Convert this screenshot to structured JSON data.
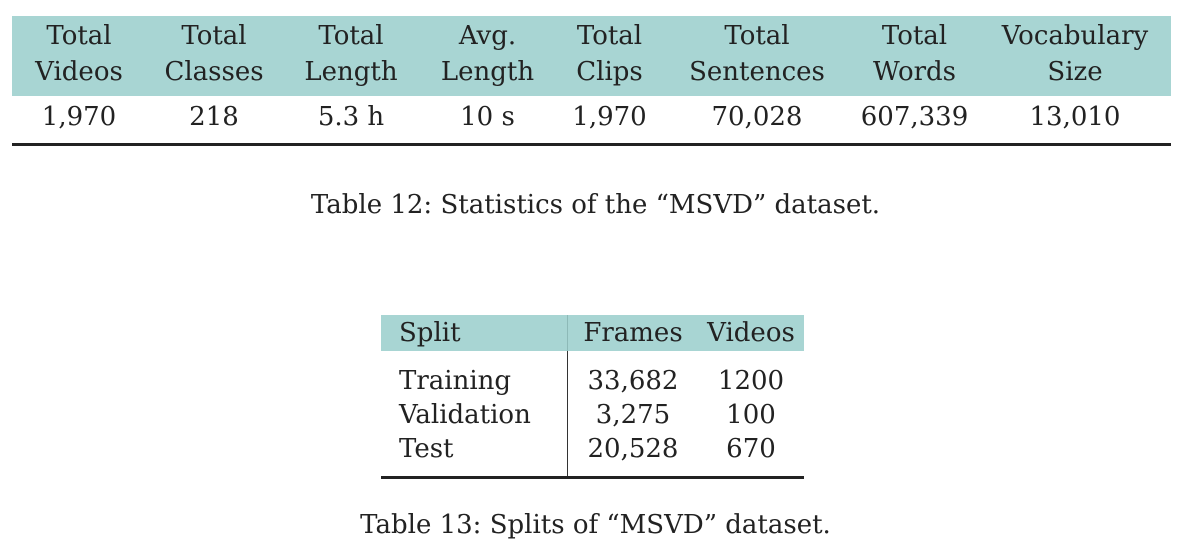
{
  "table12": {
    "headers": [
      {
        "line1": "Total",
        "line2": "Videos"
      },
      {
        "line1": "Total",
        "line2": "Classes"
      },
      {
        "line1": "Total",
        "line2": "Length"
      },
      {
        "line1": "Avg.",
        "line2": "Length"
      },
      {
        "line1": "Total",
        "line2": "Clips"
      },
      {
        "line1": "Total",
        "line2": "Sentences"
      },
      {
        "line1": "Total",
        "line2": "Words"
      },
      {
        "line1": "Vocabulary",
        "line2": "Size"
      }
    ],
    "row": [
      "1,970",
      "218",
      "5.3 h",
      "10 s",
      "1,970",
      "70,028",
      "607,339",
      "13,010"
    ],
    "caption": "Table 12:  Statistics of the “MSVD” dataset."
  },
  "table13": {
    "headers": [
      "Split",
      "Frames",
      "Videos"
    ],
    "rows": [
      [
        "Training",
        "33,682",
        "1200"
      ],
      [
        "Validation",
        "3,275",
        "100"
      ],
      [
        "Test",
        "20,528",
        "670"
      ]
    ],
    "caption": "Table 13:  Splits of “MSVD” dataset."
  },
  "colors": {
    "header_bg": "#a8d5d3",
    "text": "#222222"
  }
}
